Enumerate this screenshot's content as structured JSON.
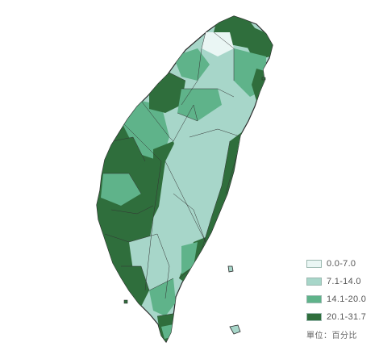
{
  "legend": {
    "items": [
      {
        "label": "0.0-7.0",
        "color": "#eaf6f4"
      },
      {
        "label": "7.1-14.0",
        "color": "#a7d6c9"
      },
      {
        "label": "14.1-20.0",
        "color": "#5fb38a"
      },
      {
        "label": "20.1-31.7",
        "color": "#2f6e3c"
      }
    ],
    "unit": "單位：百分比"
  },
  "colors": {
    "boundary": "#333333",
    "background": "#ffffff"
  }
}
